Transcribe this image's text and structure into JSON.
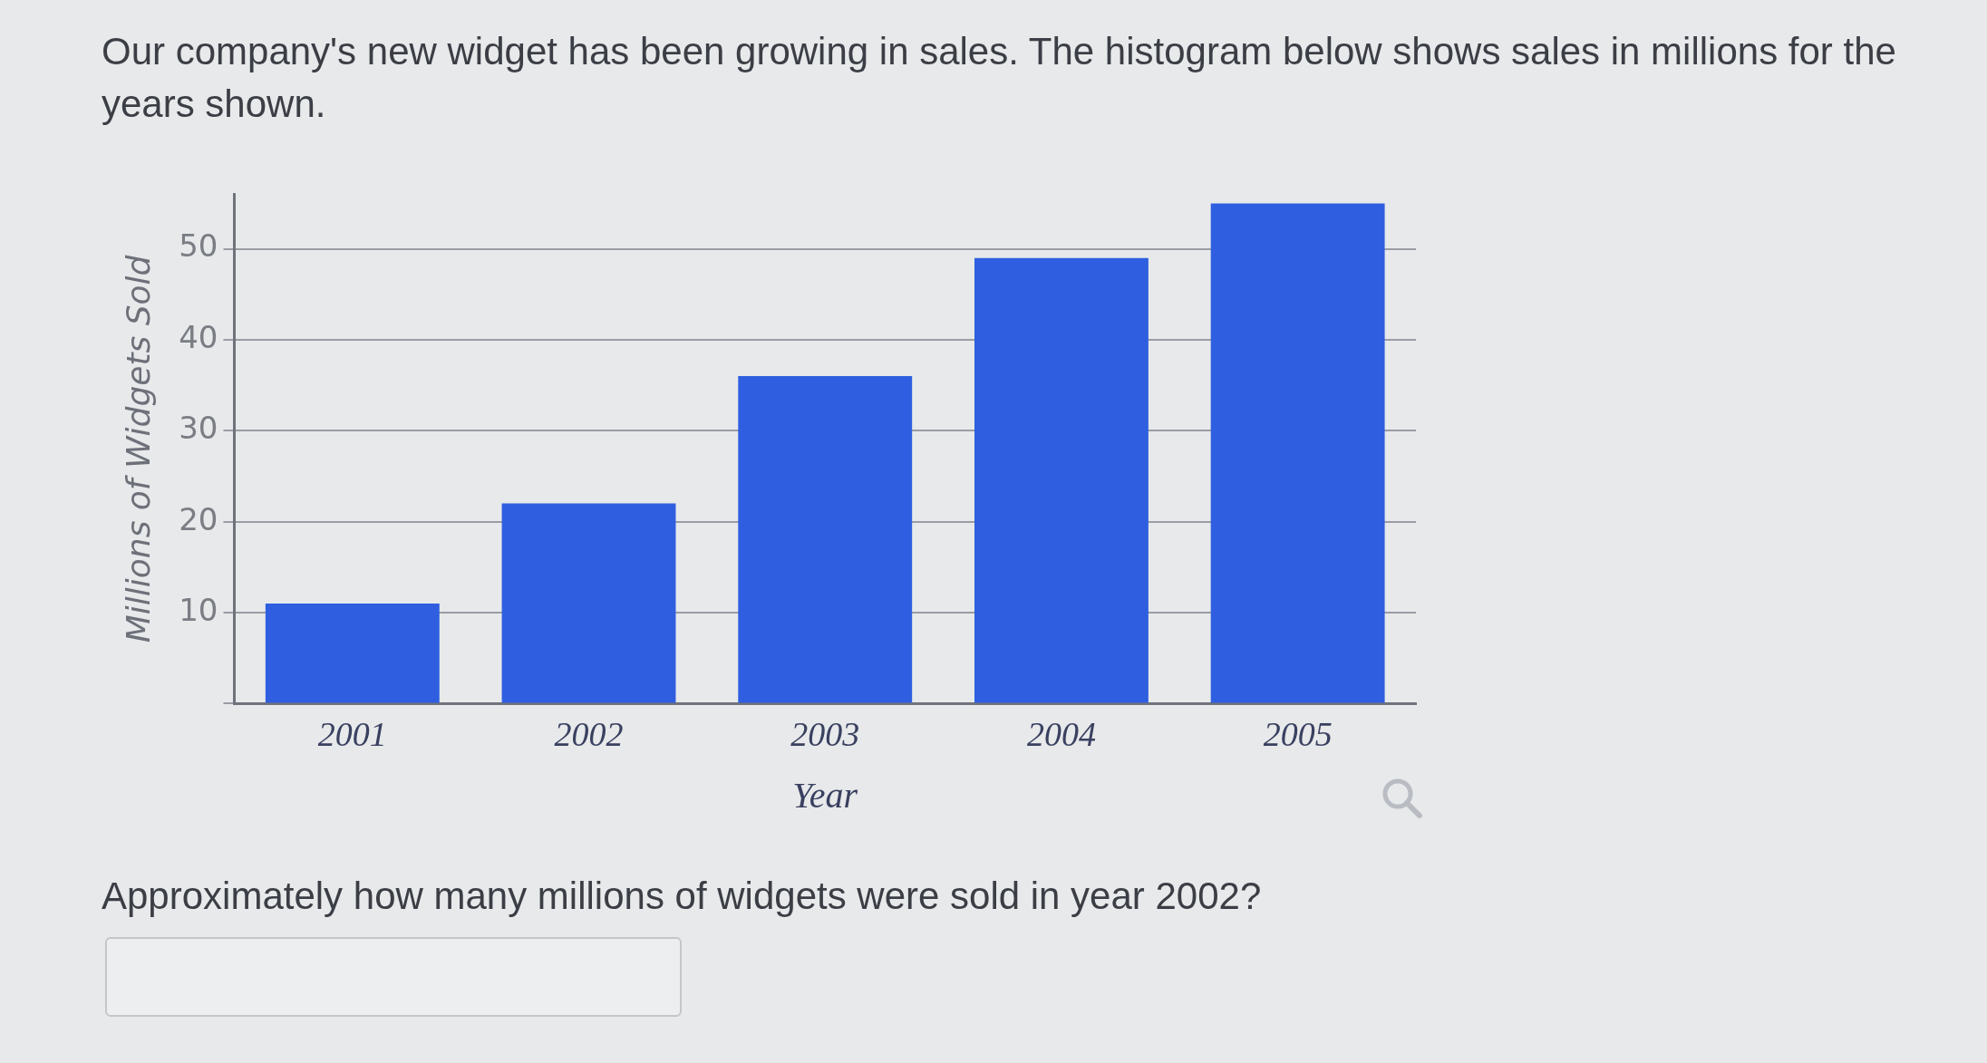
{
  "chart_data": {
    "type": "bar",
    "title": "Our company's new widget has been growing in sales. The histogram below shows sales in millions for the years shown.",
    "xlabel": "Year",
    "ylabel": "Millions of Widgets Sold",
    "annotations": [
      "Approximately how many millions of widgets were sold in year 2002?"
    ],
    "categories": [
      "2001",
      "2002",
      "2003",
      "2004",
      "2005"
    ],
    "values": [
      11,
      22,
      36,
      49,
      55
    ],
    "color": "#2f5fe0",
    "ylim": [
      0,
      56
    ],
    "yticks": [
      {
        "value": 0,
        "label": null
      },
      10,
      20,
      30,
      40,
      50
    ],
    "grid": "y"
  }
}
